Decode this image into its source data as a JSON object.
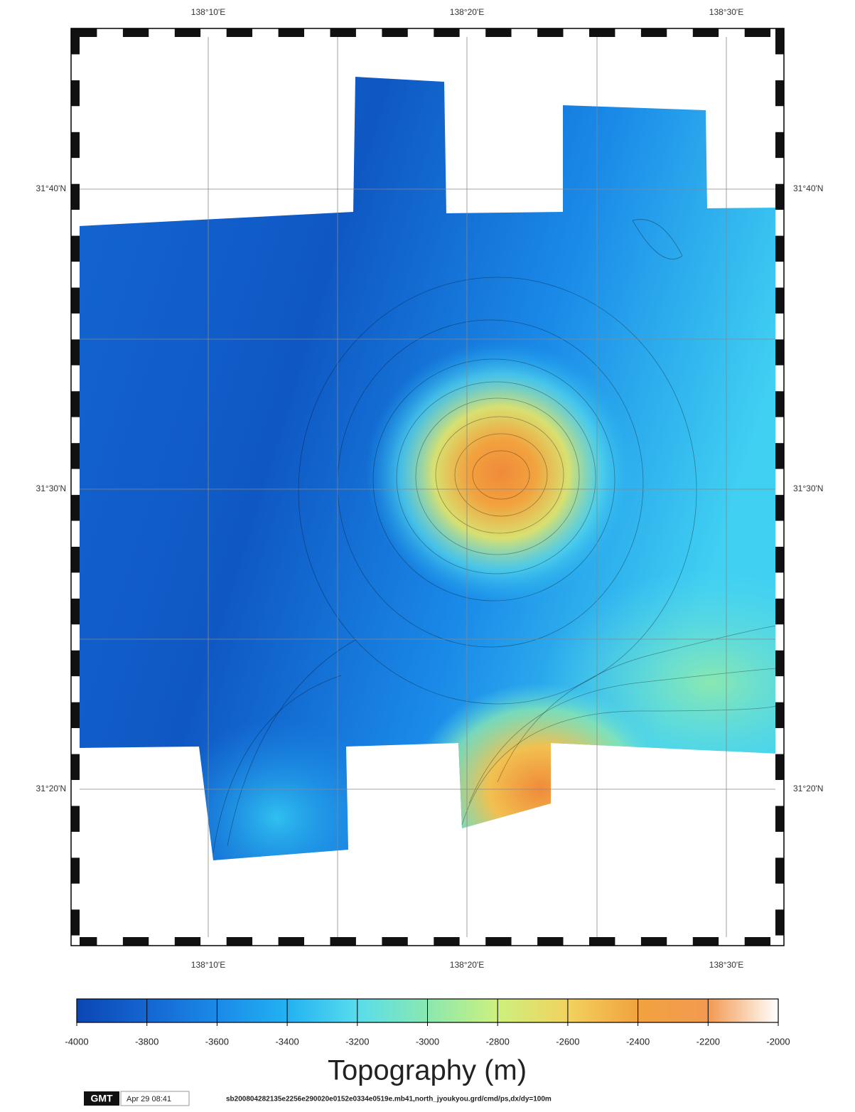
{
  "map": {
    "lon_labels": [
      "138°10'E",
      "138°20'E",
      "138°30'E"
    ],
    "lat_labels": [
      "31°40'N",
      "31°30'N",
      "31°20'N"
    ]
  },
  "colorbar": {
    "ticks": [
      -4000,
      -3800,
      -3600,
      -3400,
      -3200,
      -3000,
      -2800,
      -2600,
      -2400,
      -2200,
      -2000
    ],
    "colors": [
      "#0a46b4",
      "#1466d2",
      "#1a8ae8",
      "#22b2f2",
      "#58dcec",
      "#8ae8b0",
      "#cdf07e",
      "#f2d25e",
      "#f2a23e",
      "#f29a52",
      "#ffffff"
    ],
    "label": "Topography (m)"
  },
  "footer": {
    "logo": "GMT",
    "timestamp": "Apr 29 08:41",
    "command": "sb200804282135e2256e290020e0152e0334e0519e.mb41,north_jyoukyou.grd/cmd/ps,dx/dy=100m"
  }
}
